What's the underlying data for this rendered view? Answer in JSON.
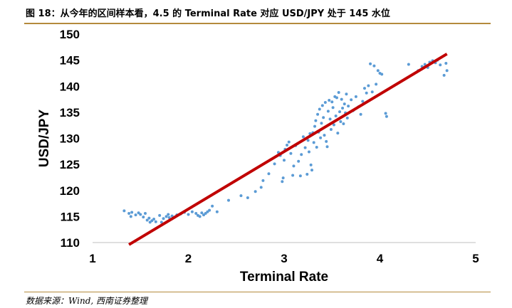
{
  "header": {
    "title": "图 18：从今年的区间样本看，4.5 的 Terminal Rate 对应 USD/JPY 处于 145 水位"
  },
  "footer": {
    "source": "数据来源：Wind, 西南证券整理"
  },
  "colors": {
    "points": "#5b9bd5",
    "fit_line": "#c00000",
    "rule": "#b48a3c",
    "axis": "#bfbfbf"
  },
  "chart_data": {
    "type": "scatter",
    "xlabel": "Terminal Rate",
    "ylabel": "USD/JPY",
    "xlim": [
      1,
      5
    ],
    "ylim": [
      110,
      150
    ],
    "xticks": [
      "1",
      "2",
      "3",
      "4",
      "5"
    ],
    "yticks": [
      "110",
      "115",
      "120",
      "125",
      "130",
      "135",
      "140",
      "145",
      "150"
    ],
    "grid": false,
    "fit_line": {
      "x": [
        1.38,
        4.7
      ],
      "y": [
        109.6,
        146.2
      ]
    },
    "series": [
      {
        "points": [
          [
            1.33,
            116.1
          ],
          [
            1.38,
            115.6
          ],
          [
            1.4,
            115.0
          ],
          [
            1.41,
            115.8
          ],
          [
            1.45,
            115.3
          ],
          [
            1.48,
            115.7
          ],
          [
            1.5,
            115.4
          ],
          [
            1.53,
            114.9
          ],
          [
            1.55,
            115.6
          ],
          [
            1.57,
            114.3
          ],
          [
            1.59,
            114.7
          ],
          [
            1.6,
            113.9
          ],
          [
            1.62,
            114.2
          ],
          [
            1.64,
            114.5
          ],
          [
            1.66,
            114.0
          ],
          [
            1.7,
            115.2
          ],
          [
            1.72,
            113.9
          ],
          [
            1.74,
            114.6
          ],
          [
            1.77,
            115.0
          ],
          [
            1.79,
            115.4
          ],
          [
            1.8,
            114.8
          ],
          [
            1.83,
            115.1
          ],
          [
            1.86,
            114.9
          ],
          [
            1.88,
            115.3
          ],
          [
            1.92,
            115.5
          ],
          [
            1.96,
            115.8
          ],
          [
            2.0,
            115.4
          ],
          [
            2.04,
            115.9
          ],
          [
            2.08,
            115.6
          ],
          [
            2.1,
            115.2
          ],
          [
            2.12,
            115.0
          ],
          [
            2.14,
            115.7
          ],
          [
            2.16,
            115.3
          ],
          [
            2.18,
            115.6
          ],
          [
            2.2,
            115.9
          ],
          [
            2.22,
            116.2
          ],
          [
            2.25,
            117.0
          ],
          [
            2.3,
            115.9
          ],
          [
            2.42,
            118.1
          ],
          [
            2.55,
            119.0
          ],
          [
            2.62,
            118.6
          ],
          [
            2.7,
            119.8
          ],
          [
            2.76,
            120.6
          ],
          [
            2.78,
            121.9
          ],
          [
            2.84,
            123.2
          ],
          [
            2.9,
            125.1
          ],
          [
            2.94,
            127.3
          ],
          [
            2.96,
            126.7
          ],
          [
            2.98,
            121.7
          ],
          [
            2.99,
            122.4
          ],
          [
            3.0,
            125.8
          ],
          [
            3.01,
            127.9
          ],
          [
            3.03,
            128.7
          ],
          [
            3.05,
            129.3
          ],
          [
            3.07,
            127.1
          ],
          [
            3.09,
            122.9
          ],
          [
            3.1,
            124.7
          ],
          [
            3.12,
            128.6
          ],
          [
            3.14,
            129.0
          ],
          [
            3.15,
            125.6
          ],
          [
            3.17,
            122.8
          ],
          [
            3.18,
            126.9
          ],
          [
            3.2,
            130.3
          ],
          [
            3.22,
            128.2
          ],
          [
            3.24,
            123.1
          ],
          [
            3.25,
            129.6
          ],
          [
            3.26,
            127.4
          ],
          [
            3.27,
            130.9
          ],
          [
            3.28,
            124.9
          ],
          [
            3.29,
            123.9
          ],
          [
            3.3,
            131.1
          ],
          [
            3.31,
            129.2
          ],
          [
            3.32,
            132.3
          ],
          [
            3.33,
            133.4
          ],
          [
            3.34,
            128.3
          ],
          [
            3.35,
            134.6
          ],
          [
            3.36,
            131.2
          ],
          [
            3.37,
            135.6
          ],
          [
            3.38,
            130.1
          ],
          [
            3.39,
            132.9
          ],
          [
            3.4,
            136.3
          ],
          [
            3.41,
            134.0
          ],
          [
            3.42,
            130.6
          ],
          [
            3.43,
            136.9
          ],
          [
            3.44,
            129.4
          ],
          [
            3.45,
            128.4
          ],
          [
            3.46,
            135.2
          ],
          [
            3.47,
            137.3
          ],
          [
            3.48,
            133.7
          ],
          [
            3.49,
            131.7
          ],
          [
            3.5,
            137.0
          ],
          [
            3.51,
            135.9
          ],
          [
            3.52,
            132.6
          ],
          [
            3.53,
            138.0
          ],
          [
            3.54,
            134.3
          ],
          [
            3.55,
            137.8
          ],
          [
            3.56,
            131.0
          ],
          [
            3.57,
            138.8
          ],
          [
            3.58,
            135.1
          ],
          [
            3.59,
            133.2
          ],
          [
            3.6,
            137.5
          ],
          [
            3.61,
            135.8
          ],
          [
            3.62,
            132.8
          ],
          [
            3.63,
            136.6
          ],
          [
            3.64,
            134.9
          ],
          [
            3.65,
            138.5
          ],
          [
            3.66,
            133.9
          ],
          [
            3.67,
            136.2
          ],
          [
            3.7,
            137.4
          ],
          [
            3.72,
            135.3
          ],
          [
            3.75,
            138.0
          ],
          [
            3.78,
            136.1
          ],
          [
            3.8,
            134.6
          ],
          [
            3.82,
            137.1
          ],
          [
            3.84,
            139.6
          ],
          [
            3.86,
            138.7
          ],
          [
            3.88,
            140.1
          ],
          [
            3.9,
            144.3
          ],
          [
            3.92,
            138.9
          ],
          [
            3.94,
            143.9
          ],
          [
            3.96,
            140.4
          ],
          [
            3.98,
            143.0
          ],
          [
            4.0,
            142.5
          ],
          [
            4.02,
            142.3
          ],
          [
            4.06,
            134.8
          ],
          [
            4.07,
            134.2
          ],
          [
            4.3,
            144.2
          ],
          [
            4.4,
            143.0
          ],
          [
            4.44,
            143.8
          ],
          [
            4.47,
            144.2
          ],
          [
            4.5,
            143.6
          ],
          [
            4.52,
            144.6
          ],
          [
            4.55,
            144.9
          ],
          [
            4.58,
            144.5
          ],
          [
            4.6,
            145.0
          ],
          [
            4.63,
            144.1
          ],
          [
            4.67,
            142.1
          ],
          [
            4.69,
            144.4
          ],
          [
            4.7,
            143.0
          ]
        ]
      }
    ]
  }
}
